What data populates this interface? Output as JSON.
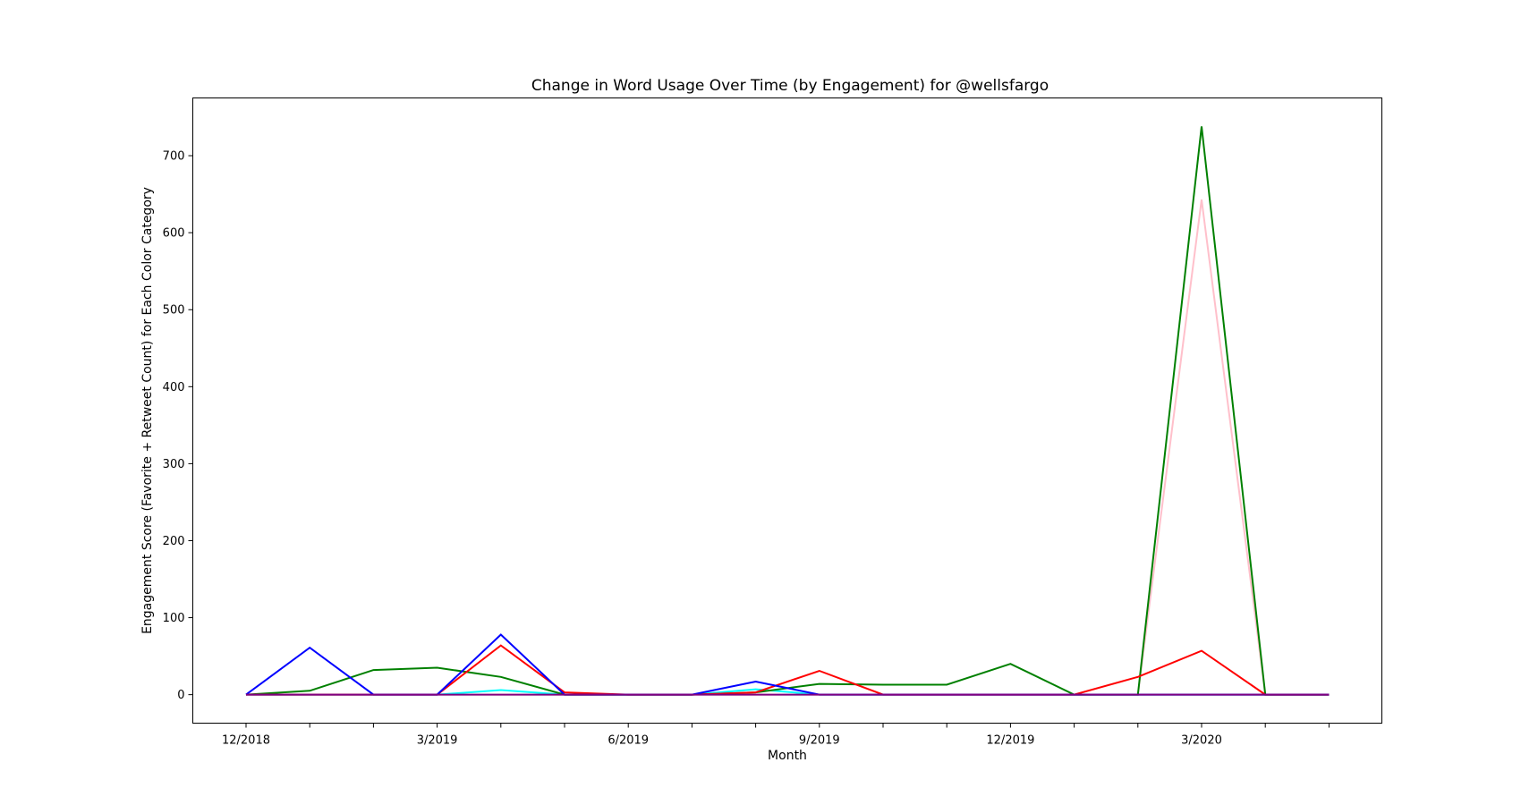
{
  "chart_data": {
    "type": "line",
    "title": "Change in Word Usage Over Time (by Engagement) for @wellsfargo",
    "xlabel": "Month",
    "ylabel": "Engagement Score (Favorite + Retweet Count) for Each Color Category",
    "x": [
      "12/2018",
      "1/2019",
      "2/2019",
      "3/2019",
      "4/2019",
      "5/2019",
      "6/2019",
      "7/2019",
      "8/2019",
      "9/2019",
      "10/2019",
      "11/2019",
      "12/2019",
      "1/2020",
      "2/2020",
      "3/2020",
      "4/2020",
      "5/2020"
    ],
    "xtick_labels": [
      "12/2018",
      "",
      "",
      "3/2019",
      "",
      "",
      "6/2019",
      "",
      "",
      "9/2019",
      "",
      "",
      "12/2019",
      "",
      "",
      "3/2020",
      "",
      ""
    ],
    "ylim": [
      -37,
      775
    ],
    "yticks": [
      0,
      100,
      200,
      300,
      400,
      500,
      600,
      700
    ],
    "grid": false,
    "series": [
      {
        "color": "#ffc0cb",
        "values": [
          0,
          0,
          0,
          0,
          0,
          0,
          0,
          0,
          0,
          0,
          0,
          0,
          0,
          0,
          0,
          643,
          0,
          0
        ]
      },
      {
        "color": "#00ffff",
        "values": [
          0,
          0,
          0,
          0,
          6,
          0,
          0,
          0,
          7,
          0,
          0,
          0,
          0,
          0,
          0,
          0,
          0,
          0
        ]
      },
      {
        "color": "#008000",
        "values": [
          0,
          5,
          32,
          35,
          23,
          0,
          0,
          0,
          3,
          14,
          13,
          13,
          40,
          0,
          0,
          738,
          0,
          0
        ]
      },
      {
        "color": "#ff0000",
        "values": [
          0,
          0,
          0,
          0,
          64,
          3,
          0,
          0,
          3,
          31,
          0,
          0,
          0,
          0,
          23,
          57,
          0,
          0
        ]
      },
      {
        "color": "#0000ff",
        "values": [
          0,
          61,
          0,
          0,
          78,
          0,
          0,
          0,
          17,
          0,
          0,
          0,
          0,
          0,
          0,
          0,
          0,
          0
        ]
      },
      {
        "color": "#800080",
        "values": [
          0,
          0,
          0,
          0,
          0,
          0,
          0,
          0,
          0,
          0,
          0,
          0,
          0,
          0,
          0,
          0,
          0,
          0
        ]
      }
    ]
  }
}
